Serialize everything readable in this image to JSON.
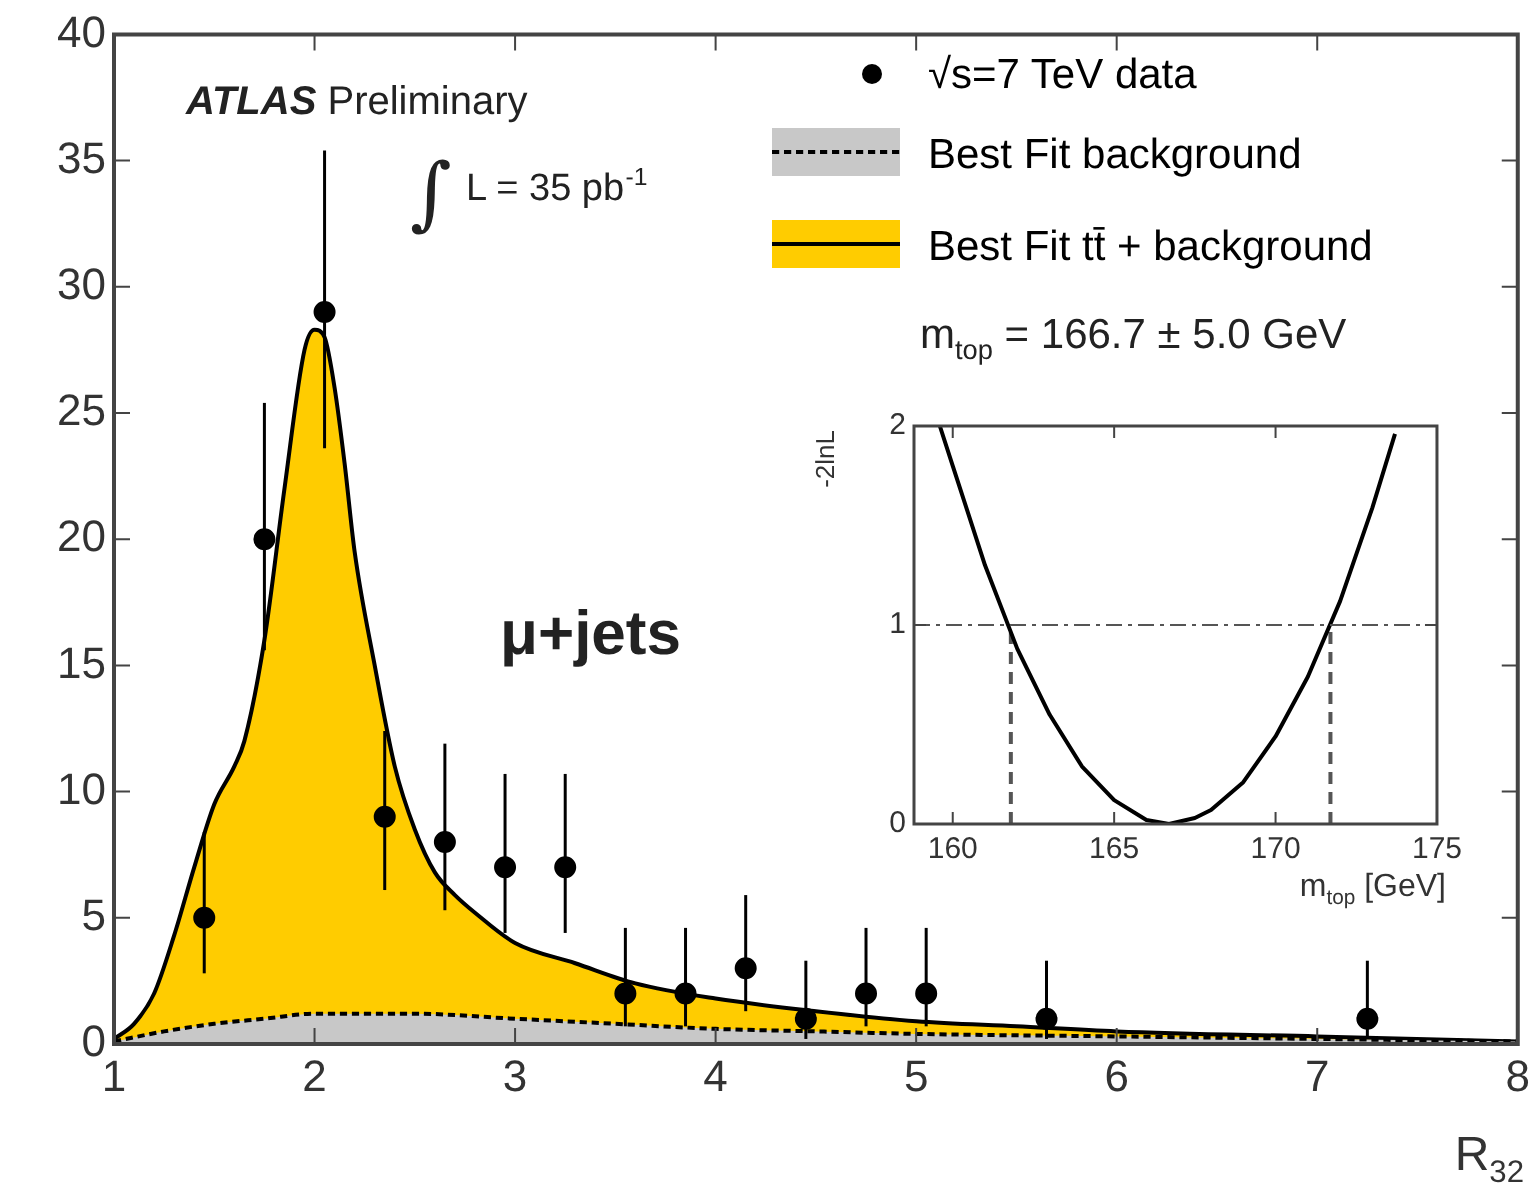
{
  "chart_data": [
    {
      "type": "line",
      "xlabel": "R$_{32}$",
      "xlim": [
        1,
        8
      ],
      "xticks": [
        1,
        2,
        3,
        4,
        5,
        6,
        7,
        8
      ],
      "ylim": [
        0,
        40
      ],
      "yticks": [
        0,
        5,
        10,
        15,
        20,
        25,
        30,
        35,
        40
      ],
      "grid": false,
      "legend": "top right",
      "annotations": [
        "ATLAS Preliminary",
        "∫ L = 35 pb$^{-1}$",
        "μ+jets",
        "m$_{top}$ = 166.7 ± 5.0 GeV"
      ],
      "series": [
        {
          "type": "scatter",
          "name": "√s=7 TeV data",
          "color": "#000000",
          "marker": "circle",
          "x": [
            1.45,
            1.75,
            2.05,
            2.35,
            2.65,
            2.95,
            3.25,
            3.55,
            3.85,
            4.15,
            4.45,
            4.75,
            5.05,
            5.65,
            7.25
          ],
          "values": [
            5,
            20,
            29,
            9,
            8,
            7,
            7,
            2,
            2,
            3,
            1,
            2,
            2,
            1,
            1
          ],
          "errors": [
            [
              2.8,
              8.4
            ],
            [
              15.6,
              25.4
            ],
            [
              23.6,
              35.4
            ],
            [
              6.1,
              12.4
            ],
            [
              5.3,
              11.9
            ],
            [
              4.4,
              10.7
            ],
            [
              4.4,
              10.7
            ],
            [
              0.7,
              4.6
            ],
            [
              0.7,
              4.6
            ],
            [
              1.3,
              5.9
            ],
            [
              0.2,
              3.3
            ],
            [
              0.7,
              4.6
            ],
            [
              0.7,
              4.6
            ],
            [
              0.2,
              3.3
            ],
            [
              0.2,
              3.3
            ]
          ]
        },
        {
          "type": "area",
          "name": "Best Fit background",
          "color": "#c8c8c8",
          "line_style": "dashed",
          "x": [
            1,
            1.25,
            1.5,
            1.75,
            2,
            2.25,
            2.5,
            3,
            3.5,
            4,
            4.5,
            5,
            6,
            7,
            8
          ],
          "values": [
            0.1,
            0.5,
            0.8,
            1.0,
            1.2,
            1.2,
            1.2,
            1.0,
            0.8,
            0.6,
            0.5,
            0.4,
            0.3,
            0.2,
            0.1
          ]
        },
        {
          "type": "area",
          "name": "Best Fit tt̄ + background",
          "color": "#ffcc00",
          "line_style": "solid",
          "x": [
            1,
            1.1,
            1.2,
            1.3,
            1.4,
            1.5,
            1.6,
            1.65,
            1.75,
            1.85,
            1.95,
            2.0,
            2.05,
            2.1,
            2.15,
            2.2,
            2.3,
            2.4,
            2.5,
            2.6,
            2.7,
            2.8,
            3.0,
            3.3,
            3.6,
            4.0,
            4.5,
            5.0,
            5.5,
            6.0,
            7.0,
            8.0
          ],
          "values": [
            0.2,
            0.8,
            2.0,
            4.3,
            7.0,
            9.5,
            11.0,
            12.0,
            16.0,
            22.0,
            27.5,
            28.3,
            28.0,
            26.0,
            23.0,
            19.5,
            15.0,
            11.0,
            8.5,
            6.8,
            5.9,
            5.2,
            4.0,
            3.2,
            2.4,
            1.8,
            1.3,
            0.9,
            0.7,
            0.5,
            0.3,
            0.1
          ]
        }
      ]
    },
    {
      "type": "line",
      "xlabel": "m$_{top}$ [GeV]",
      "ylabel": "-2lnL",
      "xlim": [
        158.8,
        175
      ],
      "xticks": [
        160,
        165,
        170,
        175
      ],
      "ylim": [
        0,
        2
      ],
      "yticks": [
        0,
        1,
        2
      ],
      "grid": false,
      "ref_lines": [
        {
          "axis": "y",
          "value": 1,
          "line_style": "dashed",
          "color": "#555555"
        }
      ],
      "series": [
        {
          "type": "line",
          "color": "#000000",
          "line_style": "solid",
          "x": [
            159.6,
            160,
            161,
            162,
            163,
            164,
            165,
            166,
            166.7,
            167.5,
            168,
            169,
            170,
            171,
            172,
            173,
            173.7
          ],
          "values": [
            2.0,
            1.8,
            1.3,
            0.88,
            0.55,
            0.29,
            0.12,
            0.02,
            0,
            0.03,
            0.07,
            0.21,
            0.44,
            0.74,
            1.12,
            1.59,
            1.96
          ]
        },
        {
          "type": "line",
          "color": "#555555",
          "line_style": "dashed",
          "x": [
            161.8,
            161.8
          ],
          "values": [
            0,
            1
          ]
        },
        {
          "type": "line",
          "color": "#555555",
          "line_style": "dashed",
          "x": [
            171.7,
            171.7
          ],
          "values": [
            0,
            1
          ]
        }
      ]
    }
  ]
}
